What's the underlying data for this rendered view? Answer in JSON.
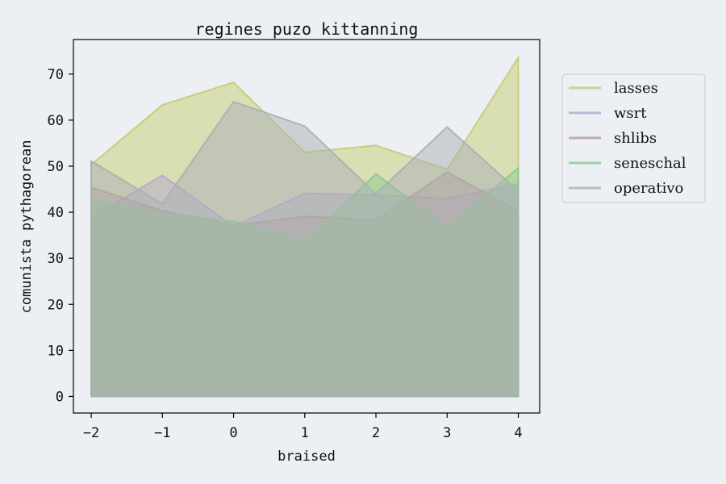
{
  "chart_data": {
    "type": "area",
    "title": "regines puzo kittanning",
    "xlabel": "braised",
    "ylabel": "comunista pythagorean",
    "x": [
      -2,
      -1,
      0,
      1,
      2,
      3,
      4
    ],
    "xlim": [
      -2.25,
      4.3
    ],
    "ylim": [
      -3.6,
      77.5
    ],
    "xticks": [
      -2,
      -1,
      0,
      1,
      2,
      3,
      4
    ],
    "xtick_labels": [
      "−2",
      "−1",
      "0",
      "1",
      "2",
      "3",
      "4"
    ],
    "yticks": [
      0,
      10,
      20,
      30,
      40,
      50,
      60,
      70
    ],
    "ytick_labels": [
      "0",
      "10",
      "20",
      "30",
      "40",
      "50",
      "60",
      "70"
    ],
    "grid": false,
    "legend_position": "outside-right",
    "background": "#ECF0F5",
    "series": [
      {
        "name": "lasses",
        "color": "#C6CB72",
        "values": [
          50.3,
          63.3,
          68.2,
          53.0,
          54.5,
          49.3,
          73.6
        ]
      },
      {
        "name": "wsrt",
        "color": "#B6A6CE",
        "values": [
          38.9,
          48.0,
          36.9,
          44.1,
          43.7,
          43.0,
          46.2
        ]
      },
      {
        "name": "shlibs",
        "color": "#B69A94",
        "values": [
          45.4,
          40.3,
          37.1,
          39.1,
          38.3,
          48.7,
          40.3
        ]
      },
      {
        "name": "seneschal",
        "color": "#8CC98C",
        "values": [
          42.6,
          39.8,
          38.0,
          33.6,
          48.3,
          36.7,
          49.6
        ]
      },
      {
        "name": "operativo",
        "color": "#A9AFB6",
        "values": [
          51.1,
          41.8,
          64.0,
          58.7,
          44.0,
          58.5,
          44.6
        ]
      }
    ]
  }
}
